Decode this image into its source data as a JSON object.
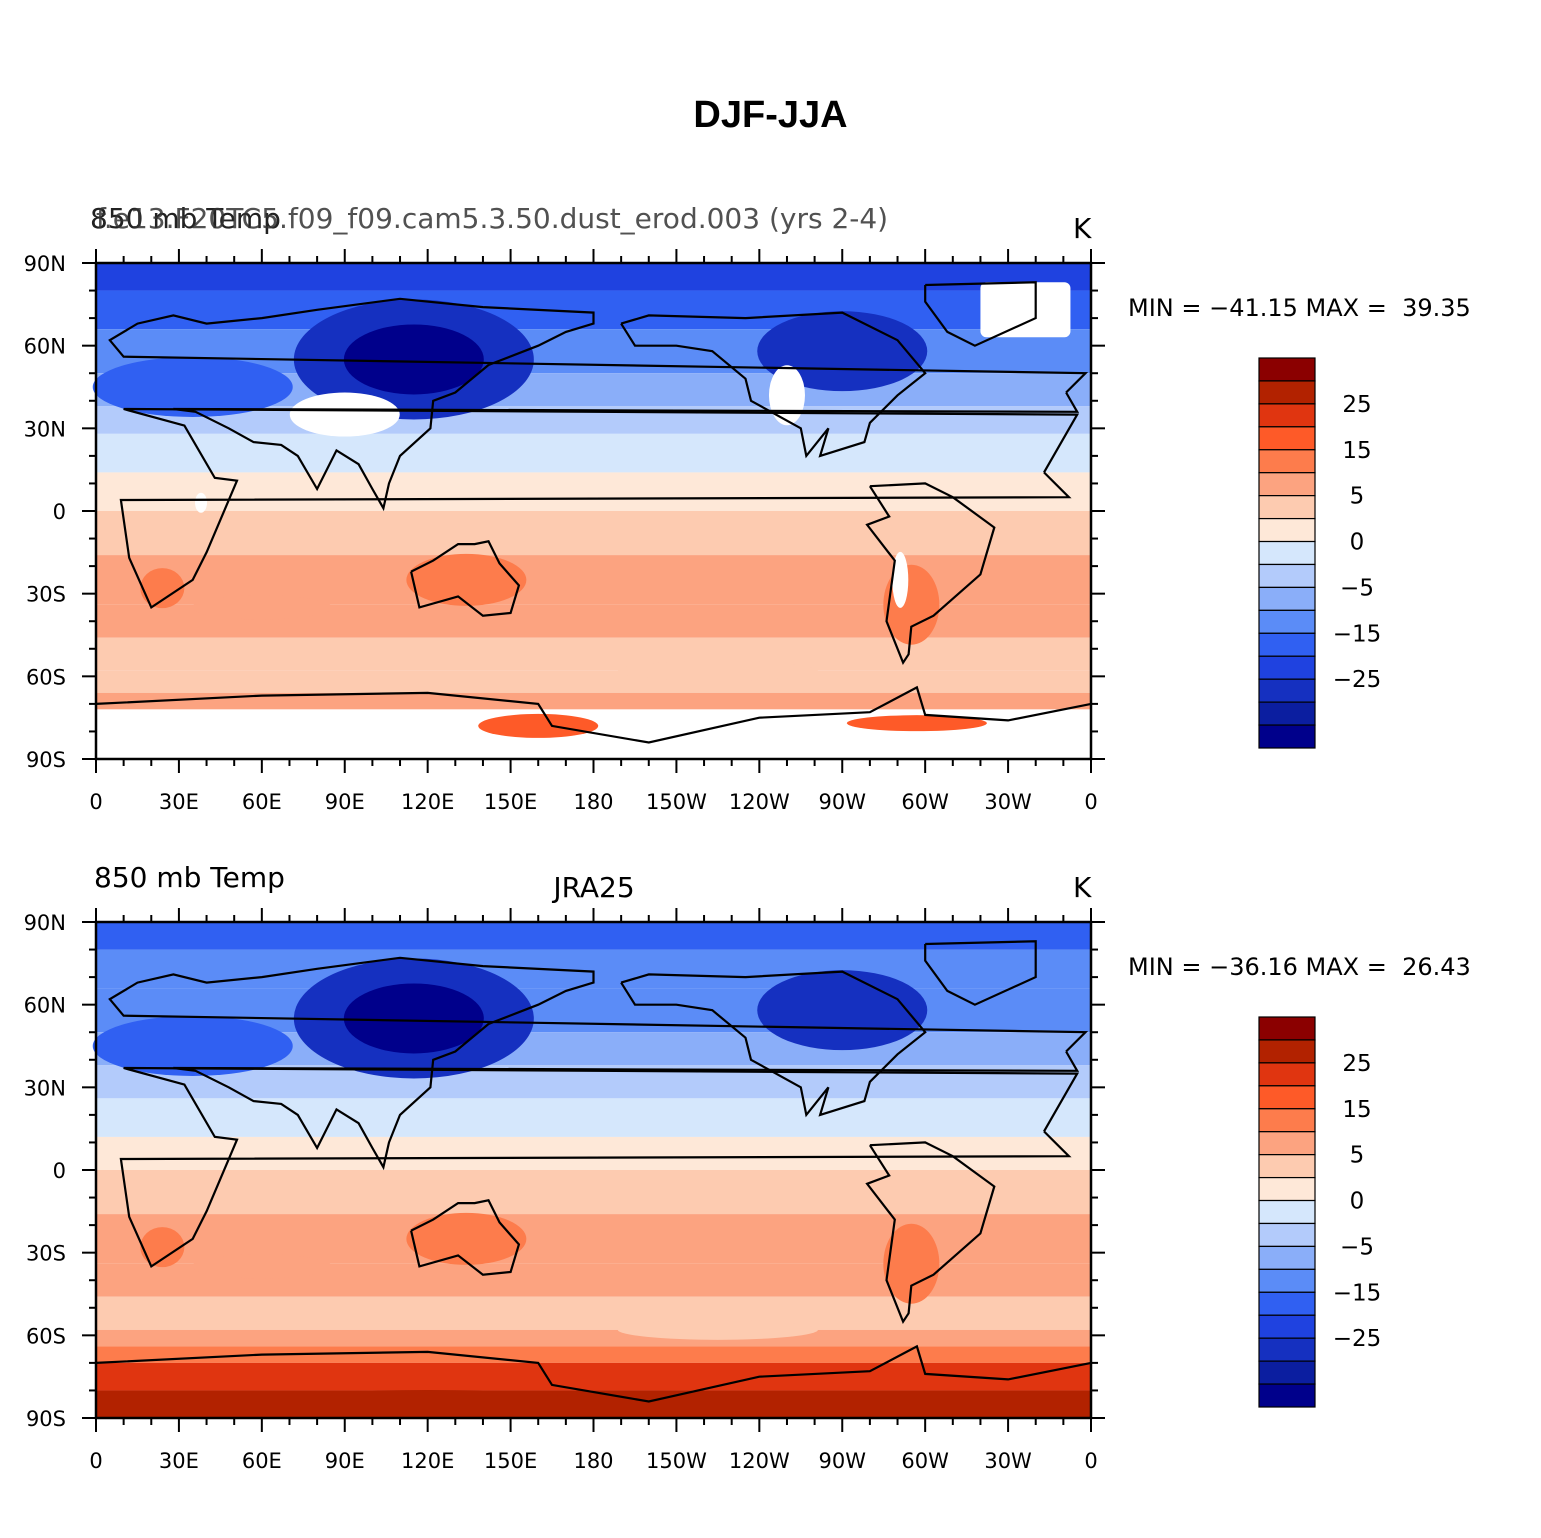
{
  "title": "DJF-JJA",
  "colors": {
    "levels_labeled": [
      "25",
      "15",
      "5",
      "0",
      "-5",
      "-15",
      "-25"
    ],
    "scale": [
      "#8b0000",
      "#b22200",
      "#e03510",
      "#fe5a28",
      "#fd7c4c",
      "#fca380",
      "#fdcbb0",
      "#fee8d8",
      "#d5e7fc",
      "#b3cbfb",
      "#8aaef9",
      "#5b8cf7",
      "#3060f2",
      "#1f42e0",
      "#1530c0",
      "#0b1ea0",
      "#00008b"
    ]
  },
  "panels": [
    {
      "id": "model",
      "left_label": "850 mb Temp",
      "overlap_label": "f.e13.F20TC5.f09_f09.cam5.3.50.dust_erod.003 (yrs 2-4)",
      "center_label": "",
      "units": "K",
      "min_max": "MIN = −41.15 MAX =  39.35",
      "has_missing": true
    },
    {
      "id": "obs",
      "left_label": "850 mb Temp",
      "center_label": "JRA25",
      "units": "K",
      "min_max": "MIN = −36.16 MAX =  26.43",
      "has_missing": false
    }
  ],
  "axes": {
    "lat_ticks": [
      "90N",
      "60N",
      "30N",
      "0",
      "30S",
      "60S",
      "90S"
    ],
    "lon_ticks": [
      "0",
      "30E",
      "60E",
      "90E",
      "120E",
      "150E",
      "180",
      "150W",
      "120W",
      "90W",
      "60W",
      "30W",
      "0"
    ]
  },
  "colorbar_labels": [
    "25",
    "15",
    "5",
    "0",
    "−5",
    "−15",
    "−25"
  ]
}
